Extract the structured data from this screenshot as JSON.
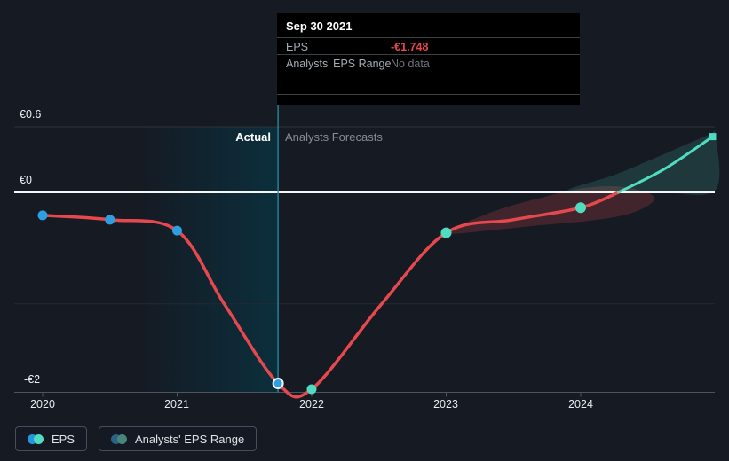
{
  "colors": {
    "background": "#151a23",
    "eps_line": "#e5484d",
    "forecast_line": "#4fdcc0",
    "dot_blue": "#2d9fe0",
    "dot_teal": "#4fdcc0",
    "band_red_fill": "rgba(229,72,77,0.22)",
    "band_teal_fill": "rgba(79,220,192,0.16)",
    "zero_line": "#f4f6f7",
    "grid_major": "#2e333c",
    "grid_faint": "#242932",
    "axis_line": "#4d545d",
    "divider_line": "#2b8a9f",
    "highlight_teal": "#0b2f3c"
  },
  "tooltip": {
    "title": "Sep 30 2021",
    "rows": [
      {
        "label": "EPS",
        "value": "-€1.748",
        "value_color": "#e5484d"
      },
      {
        "label": "Analysts' EPS Range",
        "value": "No data",
        "value_color": "#6e757c"
      }
    ]
  },
  "zones": {
    "actual": "Actual",
    "forecasts": "Analysts Forecasts"
  },
  "legend": [
    {
      "label": "EPS",
      "dot_colors": [
        "#2496dd",
        "#4fdcc0"
      ]
    },
    {
      "label": "Analysts' EPS Range",
      "dot_colors": [
        "#2b6384",
        "#47867b"
      ]
    }
  ],
  "chart_data": {
    "type": "line",
    "title": "",
    "xlabel": "",
    "ylabel": "",
    "x_axis": {
      "range": [
        2019.79,
        2025.0
      ],
      "ticks": [
        {
          "label": "2020",
          "year": 2020
        },
        {
          "label": "2021",
          "year": 2021
        },
        {
          "label": "2022",
          "year": 2022
        },
        {
          "label": "2023",
          "year": 2023
        },
        {
          "label": "2024",
          "year": 2024
        }
      ]
    },
    "y_axis": {
      "range": [
        -1.83,
        0.6
      ],
      "ticks": [
        {
          "label": "€0.6",
          "value": 0.6
        },
        {
          "label": "€0",
          "value": 0
        },
        {
          "label": "-€2",
          "value": -1.83
        }
      ],
      "unlabeled_gridline_value": -1.02
    },
    "actual_region": {
      "from_year": 2020.75,
      "to_year": 2021.75
    },
    "hover_point": {
      "date": "Sep 30 2021",
      "year": 2021.75,
      "eps": -1.748
    },
    "series": [
      {
        "name": "EPS",
        "color": "#e5484d",
        "points": [
          [
            2020.0,
            -0.21
          ],
          [
            2020.5,
            -0.25
          ],
          [
            2021.0,
            -0.35
          ],
          [
            2021.35,
            -1.02
          ],
          [
            2021.75,
            -1.748
          ],
          [
            2022.0,
            -1.8
          ],
          [
            2022.52,
            -1.02
          ],
          [
            2023.0,
            -0.37
          ],
          [
            2023.5,
            -0.25
          ],
          [
            2024.0,
            -0.14
          ],
          [
            2024.28,
            0.0
          ]
        ]
      },
      {
        "name": "EPS forecast (positive)",
        "color": "#4fdcc0",
        "points": [
          [
            2024.28,
            0.0
          ],
          [
            2024.63,
            0.22
          ],
          [
            2024.98,
            0.51
          ]
        ]
      }
    ],
    "markers": [
      {
        "year": 2020.0,
        "value": -0.21,
        "color": "#2d9fe0",
        "r": 5.5
      },
      {
        "year": 2020.5,
        "value": -0.25,
        "color": "#2d9fe0",
        "r": 5.5
      },
      {
        "year": 2021.0,
        "value": -0.35,
        "color": "#2d9fe0",
        "r": 5.5
      },
      {
        "year": 2021.75,
        "value": -1.748,
        "color": "#2d9fe0",
        "r": 5.5,
        "highlight": true
      },
      {
        "year": 2022.0,
        "value": -1.8,
        "color": "#4fdcc0",
        "r": 5.5
      },
      {
        "year": 2023.0,
        "value": -0.37,
        "color": "#4fdcc0",
        "r": 6
      },
      {
        "year": 2024.0,
        "value": -0.14,
        "color": "#4fdcc0",
        "r": 6
      }
    ],
    "end_marker": {
      "year": 2024.98,
      "value": 0.51,
      "shape": "square",
      "size": 8,
      "color": "#4fdcc0"
    },
    "bands": [
      {
        "name": "analysts-range-near-term",
        "fill": "rgba(229,72,77,0.22)",
        "points": [
          [
            2023.0,
            -0.37
          ],
          [
            2023.35,
            -0.175
          ],
          [
            2023.7,
            -0.05
          ],
          [
            2024.05,
            0.045
          ],
          [
            2024.35,
            0.045
          ],
          [
            2024.55,
            -0.05
          ],
          [
            2024.4,
            -0.18
          ],
          [
            2024.1,
            -0.255
          ],
          [
            2023.7,
            -0.3
          ],
          [
            2023.35,
            -0.345
          ]
        ]
      },
      {
        "name": "analysts-range-far-term",
        "fill": "rgba(79,220,192,0.16)",
        "points": [
          [
            2023.9,
            0.015
          ],
          [
            2024.25,
            0.16
          ],
          [
            2024.6,
            0.34
          ],
          [
            2024.95,
            0.525
          ],
          [
            2025.0,
            0.53
          ],
          [
            2025.0,
            0.02
          ],
          [
            2024.6,
            0.0
          ],
          [
            2024.25,
            -0.005
          ]
        ]
      }
    ]
  }
}
